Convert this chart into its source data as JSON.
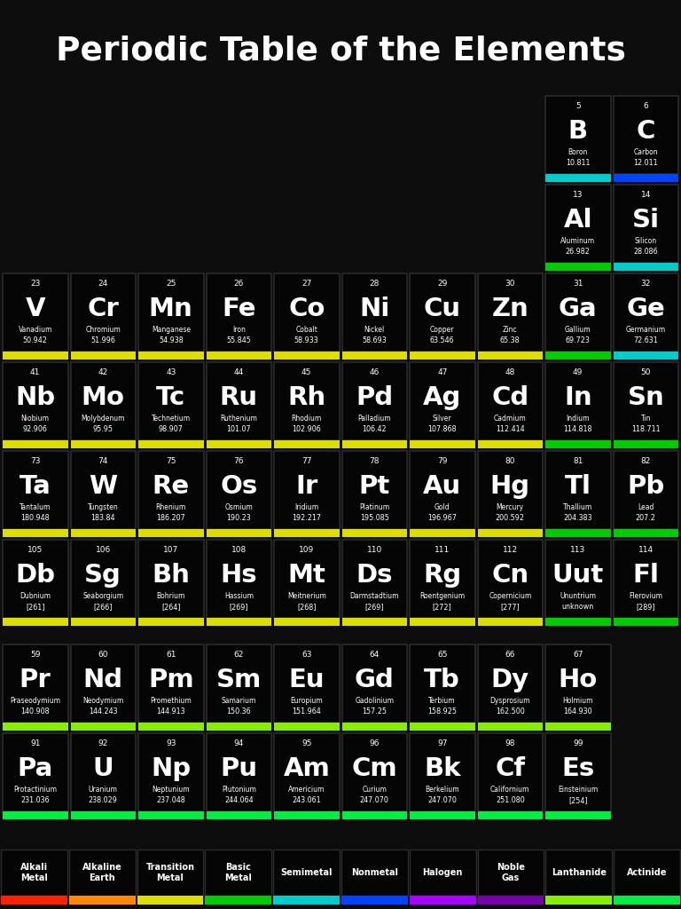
{
  "title": "Periodic Table of the Elements",
  "bg_color": "#0d0d0d",
  "text_color": "#ffffff",
  "category_colors": {
    "Alkali Metal": "#ff2200",
    "Alkaline Earth": "#ff8800",
    "Transition Metal": "#dddd00",
    "Basic Metal": "#00cc00",
    "Semimetal": "#00cccc",
    "Nonmetal": "#0044ff",
    "Halogen": "#aa00ff",
    "Noble Gas": "#7700aa",
    "Lanthanide": "#88ee00",
    "Actinide": "#00ee44"
  },
  "elements": [
    {
      "num": 5,
      "sym": "B",
      "name": "Boron",
      "mass": "10.811",
      "row": 2,
      "col": 13,
      "cat": "Semimetal"
    },
    {
      "num": 6,
      "sym": "C",
      "name": "Carbon",
      "mass": "12.011",
      "row": 2,
      "col": 14,
      "cat": "Nonmetal"
    },
    {
      "num": 13,
      "sym": "Al",
      "name": "Aluminum",
      "mass": "26.982",
      "row": 3,
      "col": 13,
      "cat": "Basic Metal"
    },
    {
      "num": 14,
      "sym": "Si",
      "name": "Silicon",
      "mass": "28.086",
      "row": 3,
      "col": 14,
      "cat": "Semimetal"
    },
    {
      "num": 23,
      "sym": "V",
      "name": "Vanadium",
      "mass": "50.942",
      "row": 4,
      "col": 5,
      "cat": "Transition Metal"
    },
    {
      "num": 24,
      "sym": "Cr",
      "name": "Chromium",
      "mass": "51.996",
      "row": 4,
      "col": 6,
      "cat": "Transition Metal"
    },
    {
      "num": 25,
      "sym": "Mn",
      "name": "Manganese",
      "mass": "54.938",
      "row": 4,
      "col": 7,
      "cat": "Transition Metal"
    },
    {
      "num": 26,
      "sym": "Fe",
      "name": "Iron",
      "mass": "55.845",
      "row": 4,
      "col": 8,
      "cat": "Transition Metal"
    },
    {
      "num": 27,
      "sym": "Co",
      "name": "Cobalt",
      "mass": "58.933",
      "row": 4,
      "col": 9,
      "cat": "Transition Metal"
    },
    {
      "num": 28,
      "sym": "Ni",
      "name": "Nickel",
      "mass": "58.693",
      "row": 4,
      "col": 10,
      "cat": "Transition Metal"
    },
    {
      "num": 29,
      "sym": "Cu",
      "name": "Copper",
      "mass": "63.546",
      "row": 4,
      "col": 11,
      "cat": "Transition Metal"
    },
    {
      "num": 30,
      "sym": "Zn",
      "name": "Zinc",
      "mass": "65.38",
      "row": 4,
      "col": 12,
      "cat": "Transition Metal"
    },
    {
      "num": 31,
      "sym": "Ga",
      "name": "Gallium",
      "mass": "69.723",
      "row": 4,
      "col": 13,
      "cat": "Basic Metal"
    },
    {
      "num": 32,
      "sym": "Ge",
      "name": "Germanium",
      "mass": "72.631",
      "row": 4,
      "col": 14,
      "cat": "Semimetal"
    },
    {
      "num": 41,
      "sym": "Nb",
      "name": "Niobium",
      "mass": "92.906",
      "row": 5,
      "col": 5,
      "cat": "Transition Metal"
    },
    {
      "num": 42,
      "sym": "Mo",
      "name": "Molybdenum",
      "mass": "95.95",
      "row": 5,
      "col": 6,
      "cat": "Transition Metal"
    },
    {
      "num": 43,
      "sym": "Tc",
      "name": "Technetium",
      "mass": "98.907",
      "row": 5,
      "col": 7,
      "cat": "Transition Metal"
    },
    {
      "num": 44,
      "sym": "Ru",
      "name": "Ruthenium",
      "mass": "101.07",
      "row": 5,
      "col": 8,
      "cat": "Transition Metal"
    },
    {
      "num": 45,
      "sym": "Rh",
      "name": "Rhodium",
      "mass": "102.906",
      "row": 5,
      "col": 9,
      "cat": "Transition Metal"
    },
    {
      "num": 46,
      "sym": "Pd",
      "name": "Palladium",
      "mass": "106.42",
      "row": 5,
      "col": 10,
      "cat": "Transition Metal"
    },
    {
      "num": 47,
      "sym": "Ag",
      "name": "Silver",
      "mass": "107.868",
      "row": 5,
      "col": 11,
      "cat": "Transition Metal"
    },
    {
      "num": 48,
      "sym": "Cd",
      "name": "Cadmium",
      "mass": "112.414",
      "row": 5,
      "col": 12,
      "cat": "Transition Metal"
    },
    {
      "num": 49,
      "sym": "In",
      "name": "Indium",
      "mass": "114.818",
      "row": 5,
      "col": 13,
      "cat": "Basic Metal"
    },
    {
      "num": 50,
      "sym": "Sn",
      "name": "Tin",
      "mass": "118.711",
      "row": 5,
      "col": 14,
      "cat": "Basic Metal"
    },
    {
      "num": 73,
      "sym": "Ta",
      "name": "Tantalum",
      "mass": "180.948",
      "row": 6,
      "col": 5,
      "cat": "Transition Metal"
    },
    {
      "num": 74,
      "sym": "W",
      "name": "Tungsten",
      "mass": "183.84",
      "row": 6,
      "col": 6,
      "cat": "Transition Metal"
    },
    {
      "num": 75,
      "sym": "Re",
      "name": "Rhenium",
      "mass": "186.207",
      "row": 6,
      "col": 7,
      "cat": "Transition Metal"
    },
    {
      "num": 76,
      "sym": "Os",
      "name": "Osmium",
      "mass": "190.23",
      "row": 6,
      "col": 8,
      "cat": "Transition Metal"
    },
    {
      "num": 77,
      "sym": "Ir",
      "name": "Iridium",
      "mass": "192.217",
      "row": 6,
      "col": 9,
      "cat": "Transition Metal"
    },
    {
      "num": 78,
      "sym": "Pt",
      "name": "Platinum",
      "mass": "195.085",
      "row": 6,
      "col": 10,
      "cat": "Transition Metal"
    },
    {
      "num": 79,
      "sym": "Au",
      "name": "Gold",
      "mass": "196.967",
      "row": 6,
      "col": 11,
      "cat": "Transition Metal"
    },
    {
      "num": 80,
      "sym": "Hg",
      "name": "Mercury",
      "mass": "200.592",
      "row": 6,
      "col": 12,
      "cat": "Transition Metal"
    },
    {
      "num": 81,
      "sym": "Tl",
      "name": "Thallium",
      "mass": "204.383",
      "row": 6,
      "col": 13,
      "cat": "Basic Metal"
    },
    {
      "num": 82,
      "sym": "Pb",
      "name": "Lead",
      "mass": "207.2",
      "row": 6,
      "col": 14,
      "cat": "Basic Metal"
    },
    {
      "num": 105,
      "sym": "Db",
      "name": "Dubnium",
      "mass": "[261]",
      "row": 7,
      "col": 5,
      "cat": "Transition Metal"
    },
    {
      "num": 106,
      "sym": "Sg",
      "name": "Seaborgium",
      "mass": "[266]",
      "row": 7,
      "col": 6,
      "cat": "Transition Metal"
    },
    {
      "num": 107,
      "sym": "Bh",
      "name": "Bohrium",
      "mass": "[264]",
      "row": 7,
      "col": 7,
      "cat": "Transition Metal"
    },
    {
      "num": 108,
      "sym": "Hs",
      "name": "Hassium",
      "mass": "[269]",
      "row": 7,
      "col": 8,
      "cat": "Transition Metal"
    },
    {
      "num": 109,
      "sym": "Mt",
      "name": "Meitnerium",
      "mass": "[268]",
      "row": 7,
      "col": 9,
      "cat": "Transition Metal"
    },
    {
      "num": 110,
      "sym": "Ds",
      "name": "Darmstadtium",
      "mass": "[269]",
      "row": 7,
      "col": 10,
      "cat": "Transition Metal"
    },
    {
      "num": 111,
      "sym": "Rg",
      "name": "Roentgenium",
      "mass": "[272]",
      "row": 7,
      "col": 11,
      "cat": "Transition Metal"
    },
    {
      "num": 112,
      "sym": "Cn",
      "name": "Copernicium",
      "mass": "[277]",
      "row": 7,
      "col": 12,
      "cat": "Transition Metal"
    },
    {
      "num": 113,
      "sym": "Uut",
      "name": "Ununtrium",
      "mass": "unknown",
      "row": 7,
      "col": 13,
      "cat": "Basic Metal"
    },
    {
      "num": 114,
      "sym": "Fl",
      "name": "Flerovium",
      "mass": "[289]",
      "row": 7,
      "col": 14,
      "cat": "Basic Metal"
    },
    {
      "num": 59,
      "sym": "Pr",
      "name": "Praseodymium",
      "mass": "140.908",
      "row": 9,
      "col": 1,
      "cat": "Lanthanide"
    },
    {
      "num": 60,
      "sym": "Nd",
      "name": "Neodymium",
      "mass": "144.243",
      "row": 9,
      "col": 2,
      "cat": "Lanthanide"
    },
    {
      "num": 61,
      "sym": "Pm",
      "name": "Promethium",
      "mass": "144.913",
      "row": 9,
      "col": 3,
      "cat": "Lanthanide"
    },
    {
      "num": 62,
      "sym": "Sm",
      "name": "Samarium",
      "mass": "150.36",
      "row": 9,
      "col": 4,
      "cat": "Lanthanide"
    },
    {
      "num": 63,
      "sym": "Eu",
      "name": "Europium",
      "mass": "151.964",
      "row": 9,
      "col": 5,
      "cat": "Lanthanide"
    },
    {
      "num": 64,
      "sym": "Gd",
      "name": "Gadolinium",
      "mass": "157.25",
      "row": 9,
      "col": 6,
      "cat": "Lanthanide"
    },
    {
      "num": 65,
      "sym": "Tb",
      "name": "Terbium",
      "mass": "158.925",
      "row": 9,
      "col": 7,
      "cat": "Lanthanide"
    },
    {
      "num": 66,
      "sym": "Dy",
      "name": "Dysprosium",
      "mass": "162.500",
      "row": 9,
      "col": 8,
      "cat": "Lanthanide"
    },
    {
      "num": 67,
      "sym": "Ho",
      "name": "Holmium",
      "mass": "164.930",
      "row": 9,
      "col": 9,
      "cat": "Lanthanide"
    },
    {
      "num": 91,
      "sym": "Pa",
      "name": "Protactinium",
      "mass": "231.036",
      "row": 10,
      "col": 1,
      "cat": "Actinide"
    },
    {
      "num": 92,
      "sym": "U",
      "name": "Uranium",
      "mass": "238.029",
      "row": 10,
      "col": 2,
      "cat": "Actinide"
    },
    {
      "num": 93,
      "sym": "Np",
      "name": "Neptunium",
      "mass": "237.048",
      "row": 10,
      "col": 3,
      "cat": "Actinide"
    },
    {
      "num": 94,
      "sym": "Pu",
      "name": "Plutonium",
      "mass": "244.064",
      "row": 10,
      "col": 4,
      "cat": "Actinide"
    },
    {
      "num": 95,
      "sym": "Am",
      "name": "Americium",
      "mass": "243.061",
      "row": 10,
      "col": 5,
      "cat": "Actinide"
    },
    {
      "num": 96,
      "sym": "Cm",
      "name": "Curium",
      "mass": "247.070",
      "row": 10,
      "col": 6,
      "cat": "Actinide"
    },
    {
      "num": 97,
      "sym": "Bk",
      "name": "Berkelium",
      "mass": "247.070",
      "row": 10,
      "col": 7,
      "cat": "Actinide"
    },
    {
      "num": 98,
      "sym": "Cf",
      "name": "Californium",
      "mass": "251.080",
      "row": 10,
      "col": 8,
      "cat": "Actinide"
    },
    {
      "num": 99,
      "sym": "Es",
      "name": "Einsteinium",
      "mass": "[254]",
      "row": 10,
      "col": 9,
      "cat": "Actinide"
    }
  ],
  "legend": [
    {
      "label": "Alkali\nMetal",
      "color": "#ff2200"
    },
    {
      "label": "Alkaline\nEarth",
      "color": "#ff8800"
    },
    {
      "label": "Transition\nMetal",
      "color": "#dddd00"
    },
    {
      "label": "Basic\nMetal",
      "color": "#00cc00"
    },
    {
      "label": "Semimetal",
      "color": "#00cccc"
    },
    {
      "label": "Nonmetal",
      "color": "#0044ff"
    },
    {
      "label": "Halogen",
      "color": "#aa00ff"
    },
    {
      "label": "Noble\nGas",
      "color": "#7700aa"
    },
    {
      "label": "Lanthanide",
      "color": "#88ee00"
    },
    {
      "label": "Actinide",
      "color": "#00ee44"
    }
  ]
}
